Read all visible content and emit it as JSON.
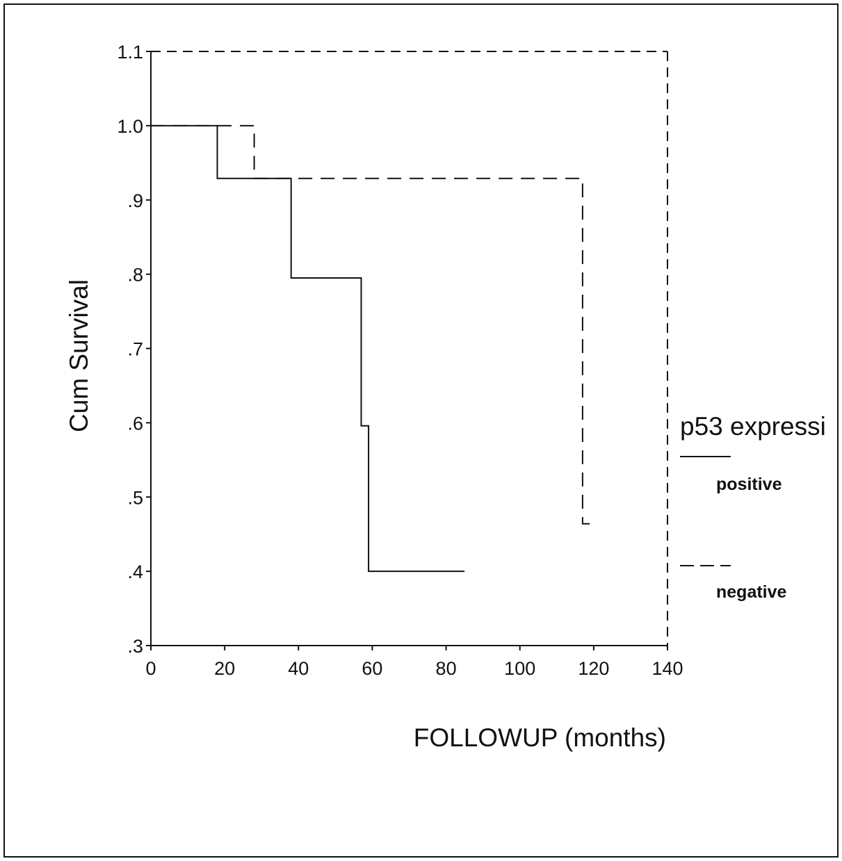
{
  "chart_data": {
    "type": "line",
    "step": true,
    "title": "",
    "xlabel": "FOLLOWUP (months)",
    "ylabel": "Cum Survival",
    "xlim": [
      0,
      140
    ],
    "ylim": [
      0.3,
      1.1
    ],
    "x_ticks": [
      0,
      20,
      40,
      60,
      80,
      100,
      120,
      140
    ],
    "x_tick_labels": [
      "0",
      "20",
      "40",
      "60",
      "80",
      "100",
      "120",
      "140"
    ],
    "y_ticks": [
      0.3,
      0.4,
      0.5,
      0.6,
      0.7,
      0.8,
      0.9,
      1.0,
      1.1
    ],
    "y_tick_labels": [
      ".3",
      ".4",
      ".5",
      ".6",
      ".7",
      ".8",
      ".9",
      "1.0",
      "1.1"
    ],
    "legend": {
      "title": "p53 expressi",
      "placement": "right"
    },
    "series": [
      {
        "name": "positive",
        "line_style": "solid",
        "x": [
          0,
          18,
          18,
          38,
          38,
          57,
          57,
          59,
          59,
          85
        ],
        "y": [
          1.0,
          1.0,
          0.929,
          0.929,
          0.795,
          0.795,
          0.596,
          0.596,
          0.4,
          0.4
        ]
      },
      {
        "name": "negative",
        "line_style": "dashed",
        "x": [
          0,
          28,
          28,
          117,
          117,
          119
        ],
        "y": [
          1.0,
          1.0,
          0.929,
          0.929,
          0.464,
          0.464
        ]
      }
    ]
  }
}
